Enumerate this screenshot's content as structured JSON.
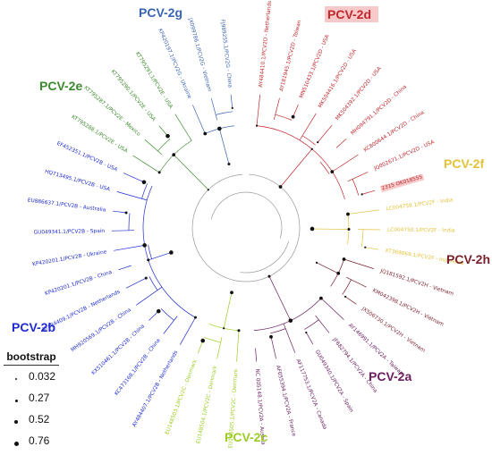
{
  "legend": {
    "title": "bootstrap",
    "items": [
      {
        "value": "0.032",
        "dot": 2
      },
      {
        "value": "0.27",
        "dot": 3
      },
      {
        "value": "0.52",
        "dot": 4
      },
      {
        "value": "0.76",
        "dot": 5
      }
    ]
  },
  "groups": [
    {
      "id": "2g",
      "label": "PCV-2g",
      "color": "#3a63b4",
      "highlight": false
    },
    {
      "id": "2d",
      "label": "PCV-2d",
      "color": "#c1272d",
      "highlight": true
    },
    {
      "id": "2e",
      "label": "PCV-2e",
      "color": "#3c8a2e",
      "highlight": false
    },
    {
      "id": "2f",
      "label": "PCV-2f",
      "color": "#e3c23a",
      "highlight": false
    },
    {
      "id": "2h",
      "label": "PCV-2h",
      "color": "#7a1f2b",
      "highlight": false
    },
    {
      "id": "2b",
      "label": "PCV-2b",
      "color": "#1f2bd0",
      "highlight": false
    },
    {
      "id": "2a",
      "label": "PCV-2a",
      "color": "#6b2060",
      "highlight": false
    },
    {
      "id": "2c",
      "label": "PCV-2c",
      "color": "#9ccc22",
      "highlight": false
    }
  ],
  "leaves": [
    {
      "text": "AY484410.1/PCV2D - Netherlands",
      "group": "2d",
      "highlight": false
    },
    {
      "text": "AY181945.1/PCV2D - Taiwan",
      "group": "2d",
      "highlight": false
    },
    {
      "text": "MN510433.1/PCV2D - USA",
      "group": "2d",
      "highlight": false
    },
    {
      "text": "MK504416.1/PCV2D - USA",
      "group": "2d",
      "highlight": false
    },
    {
      "text": "MK504392.1/PCV2D - USA",
      "group": "2d",
      "highlight": false
    },
    {
      "text": "MH094791.1/PCV2D - China",
      "group": "2d",
      "highlight": false
    },
    {
      "text": "KC800644.1/PCV2D - China",
      "group": "2d",
      "highlight": false
    },
    {
      "text": "JQ002671.1/PCV2D - USA",
      "group": "2d",
      "highlight": false
    },
    {
      "text": "2315 OK018555",
      "group": "2d",
      "highlight": true
    },
    {
      "text": "LC004759.1/PCV2F - India",
      "group": "2f",
      "highlight": false
    },
    {
      "text": "LC004750.1/PCV2F - India",
      "group": "2f",
      "highlight": false
    },
    {
      "text": "KT369069.1/PCV2F - Indonesia",
      "group": "2f",
      "highlight": false
    },
    {
      "text": "JQ181592.1/PCV2H - Vietnam",
      "group": "2h",
      "highlight": false
    },
    {
      "text": "KM042398.1/PCV2H - Vietnam",
      "group": "2h",
      "highlight": false
    },
    {
      "text": "JX506730.1/PCV2H - Vietnam",
      "group": "2h",
      "highlight": false
    },
    {
      "text": "AY146991.1/PCV2A - Taiwan",
      "group": "2a",
      "highlight": false
    },
    {
      "text": "JF682794.1/PCV2A - China",
      "group": "2a",
      "highlight": false
    },
    {
      "text": "GU049340.1/PCV2A - Spain",
      "group": "2a",
      "highlight": false
    },
    {
      "text": "AF117753.1/PCV2A - Canada",
      "group": "2a",
      "highlight": false
    },
    {
      "text": "AF055394.1/PCV2A - France",
      "group": "2a",
      "highlight": false
    },
    {
      "text": "NC 005148.1/PCV2A - Austria",
      "group": "2a",
      "highlight": false
    },
    {
      "text": "EU148505.1/PCV2C - Denmark",
      "group": "2c",
      "highlight": false
    },
    {
      "text": "EU148504.1/PCV2C - Denmark",
      "group": "2c",
      "highlight": false
    },
    {
      "text": "EU148503.1/PCV2C - Denmark",
      "group": "2c",
      "highlight": false
    },
    {
      "text": "AY484407.1/PCV2B - Netherlands",
      "group": "2b",
      "highlight": false
    },
    {
      "text": "KC473168.1/PCV2B - China",
      "group": "2b",
      "highlight": false
    },
    {
      "text": "KX510461.1/PCV2B - China",
      "group": "2b",
      "highlight": false
    },
    {
      "text": "MH920569.1/PCV2B - China",
      "group": "2b",
      "highlight": false
    },
    {
      "text": "AY484409.1/PCV2B - Netherlands",
      "group": "2b",
      "highlight": false
    },
    {
      "text": "KP420201.1/PCV2B - China",
      "group": "2b",
      "highlight": false
    },
    {
      "text": "KP420201.1/PCV2B - Ukraine",
      "group": "2b",
      "highlight": false
    },
    {
      "text": "GU049341.1/PCV2B - Spain",
      "group": "2b",
      "highlight": false
    },
    {
      "text": "EU886637.1/PCV2B - Australia",
      "group": "2b",
      "highlight": false
    },
    {
      "text": "HQ713495.1/PCV2B - USA",
      "group": "2b",
      "highlight": false
    },
    {
      "text": "EF452351.1/PCV2B - USA",
      "group": "2b",
      "highlight": false
    },
    {
      "text": "KT795288.1/PCV2E - USA",
      "group": "2e",
      "highlight": false
    },
    {
      "text": "KT795287.1/PCV2E - Mexico",
      "group": "2e",
      "highlight": false
    },
    {
      "text": "KT795290.1/PCV2E - USA",
      "group": "2e",
      "highlight": false
    },
    {
      "text": "KT795291.1/PCV2E - USA",
      "group": "2e",
      "highlight": false
    },
    {
      "text": "KP420197.1/PCV2G - Ukraine",
      "group": "2g",
      "highlight": false
    },
    {
      "text": "JX099786.1/PCV2G - Vietnam",
      "group": "2g",
      "highlight": false
    },
    {
      "text": "FJ989255.1/PCV2G - China",
      "group": "2g",
      "highlight": false
    }
  ]
}
